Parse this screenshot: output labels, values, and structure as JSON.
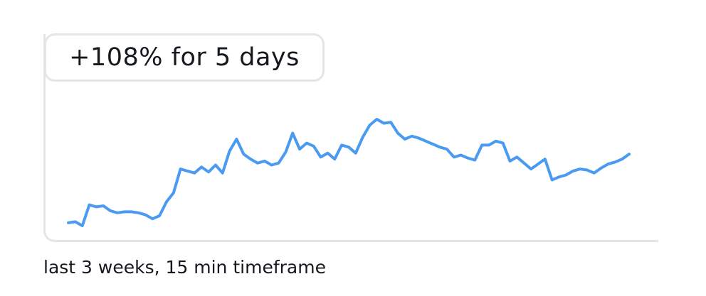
{
  "badge": {
    "text": "+108% for 5 days"
  },
  "caption": {
    "text": "last 3 weeks, 15 min timeframe"
  },
  "colors": {
    "line": "#4a9af2",
    "frame": "#e3e5e8",
    "text": "#15181c"
  },
  "chart_data": {
    "type": "line",
    "title": "",
    "xlabel": "",
    "ylabel": "",
    "grid": false,
    "series": [
      {
        "color": "#4a9af2",
        "x": [
          0,
          1.25,
          2.5,
          3.75,
          5,
          6.25,
          7.5,
          8.75,
          10,
          11.25,
          12.5,
          13.75,
          15,
          16.25,
          17.5,
          18.75,
          20,
          21.25,
          22.5,
          23.75,
          25,
          26.25,
          27.5,
          28.75,
          30,
          31.25,
          32.5,
          33.75,
          35,
          36.25,
          37.5,
          38.75,
          40,
          41.25,
          42.5,
          43.75,
          45,
          46.25,
          47.5,
          48.75,
          50,
          51.25,
          52.5,
          53.75,
          55,
          56.25,
          57.5,
          58.75,
          60,
          61.25,
          62.5,
          63.75,
          65,
          66.25,
          67.5,
          68.75,
          70,
          71.25,
          72.5,
          73.75,
          75,
          76.25,
          77.5,
          78.75,
          80,
          81.25,
          82.5,
          83.75,
          85,
          86.25,
          87.5,
          88.75,
          90,
          91.25,
          92.5,
          93.75,
          95,
          96.25,
          97.5,
          98.75,
          100
        ],
        "values": [
          6,
          7,
          3,
          24,
          22,
          23,
          18,
          16,
          17,
          17,
          16,
          14,
          10,
          13,
          27,
          36,
          60,
          58,
          56,
          62,
          57,
          64,
          56,
          78,
          90,
          75,
          70,
          66,
          68,
          64,
          66,
          77,
          96,
          80,
          86,
          83,
          72,
          76,
          70,
          84,
          82,
          76,
          92,
          104,
          110,
          106,
          107,
          96,
          90,
          93,
          91,
          88,
          85,
          82,
          80,
          72,
          74,
          71,
          69,
          84,
          84,
          88,
          86,
          68,
          72,
          66,
          60,
          65,
          70,
          49,
          52,
          54,
          58,
          60,
          59,
          56,
          61,
          65,
          67,
          70,
          75
        ]
      }
    ]
  }
}
